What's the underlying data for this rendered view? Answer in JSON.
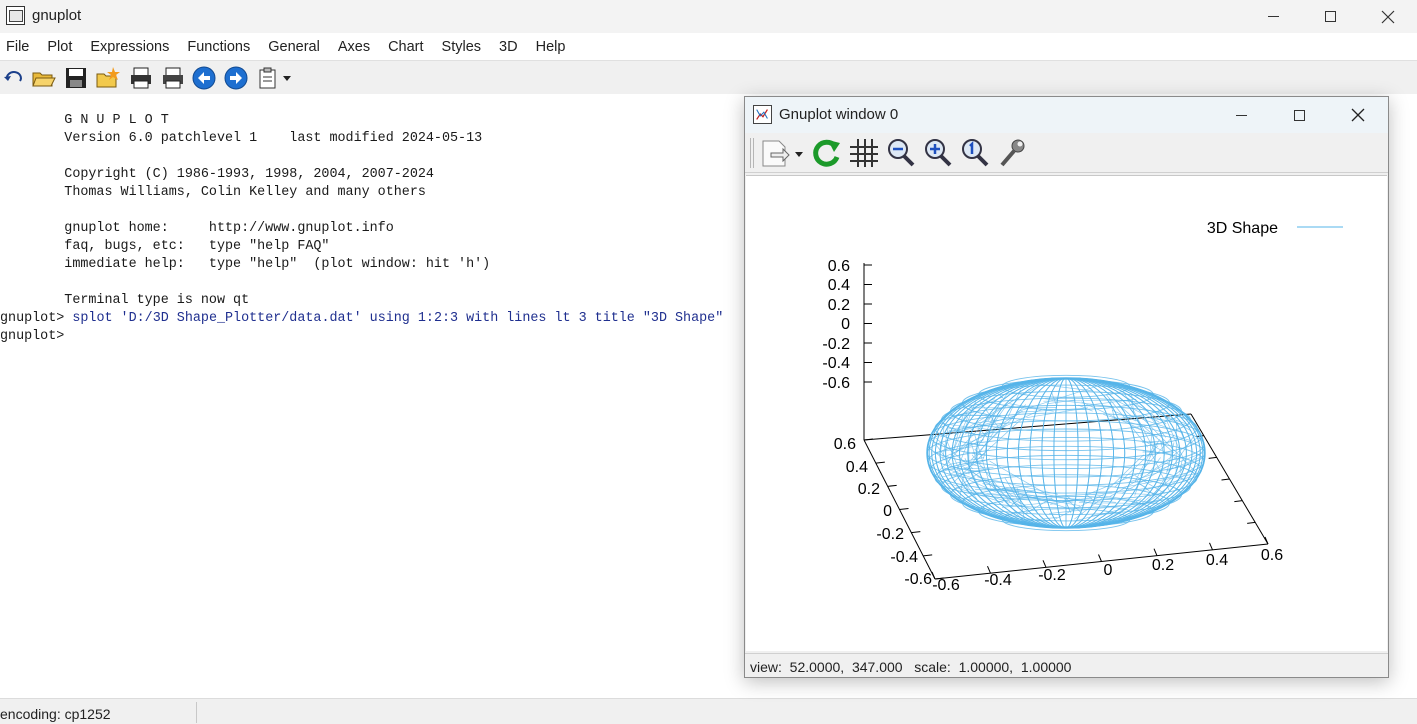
{
  "window": {
    "title": "gnuplot"
  },
  "menu": [
    "File",
    "Plot",
    "Expressions",
    "Functions",
    "General",
    "Axes",
    "Chart",
    "Styles",
    "3D",
    "Help"
  ],
  "toolbar": [
    "replot-icon",
    "open-folder-icon",
    "save-icon",
    "change-directory-icon",
    "print-icon",
    "print-setup-icon",
    "back-arrow-icon",
    "forward-arrow-icon",
    "clipboard-dropdown-icon"
  ],
  "console": {
    "lines": [
      "        G N U P L O T",
      "        Version 6.0 patchlevel 1    last modified 2024-05-13",
      "",
      "        Copyright (C) 1986-1993, 1998, 2004, 2007-2024",
      "        Thomas Williams, Colin Kelley and many others",
      "",
      "        gnuplot home:     http://www.gnuplot.info",
      "        faq, bugs, etc:   type \"help FAQ\"",
      "        immediate help:   type \"help\"  (plot window: hit 'h')",
      "",
      "        Terminal type is now qt"
    ],
    "prompt": "gnuplot>",
    "command": " splot 'D:/3D Shape_Plotter/data.dat' using 1:2:3 with lines lt 3 title \"3D Shape\"",
    "prompt2": "gnuplot>"
  },
  "status": {
    "encoding": "encoding: cp1252"
  },
  "plot_window": {
    "title": "Gnuplot window 0",
    "toolbar": [
      "export-dropdown-icon",
      "replot-icon",
      "grid-icon",
      "zoom-out-icon",
      "zoom-in-icon",
      "zoom-reset-icon",
      "settings-wrench-icon"
    ],
    "status": "view:  52.0000,  347.000   scale:  1.00000,  1.00000"
  },
  "colors": {
    "series": "#56b4e9",
    "axis": "#000000"
  },
  "chart_data": {
    "type": "surface-3d",
    "series": [
      {
        "name": "3D Shape",
        "style": "lines",
        "color": "#56b4e9",
        "shape": "ellipsoid"
      }
    ],
    "x_ticks": [
      "-0.6",
      "-0.4",
      "-0.2",
      "0",
      "0.2",
      "0.4",
      "0.6"
    ],
    "y_ticks": [
      "0.6",
      "0.4",
      "0.2",
      "0",
      "-0.2",
      "-0.4",
      "-0.6"
    ],
    "z_ticks": [
      "0.6",
      "0.4",
      "0.2",
      "0",
      "-0.2",
      "-0.4",
      "-0.6"
    ],
    "xlim": [
      -0.6,
      0.6
    ],
    "ylim": [
      -0.6,
      0.6
    ],
    "zlim": [
      -0.6,
      0.6
    ],
    "view": [
      52.0,
      347.0
    ],
    "legend_position": "top-right"
  }
}
